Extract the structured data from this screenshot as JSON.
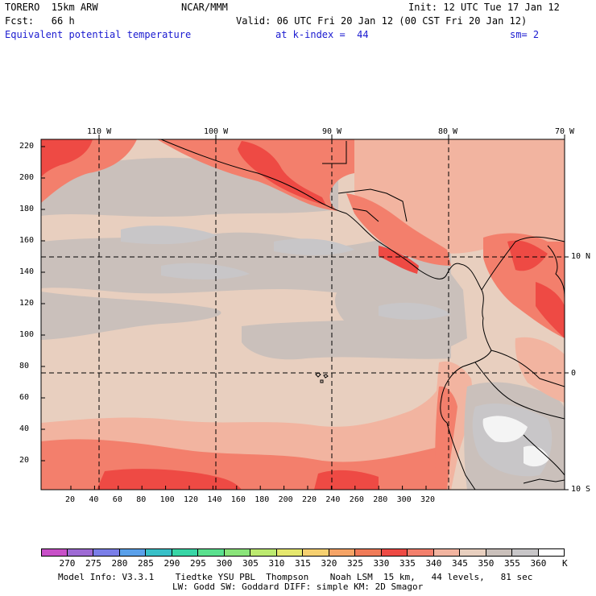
{
  "header": {
    "model": "TORERO  15km ARW",
    "org": "NCAR/MMM",
    "init": "Init: 12 UTC Tue 17 Jan 12",
    "fcst": "Fcst:   66 h",
    "valid": "Valid: 06 UTC Fri 20 Jan 12 (00 CST Fri 20 Jan 12)",
    "field": "Equivalent potential temperature",
    "level": "at k-index =  44",
    "smooth": "sm= 2"
  },
  "map": {
    "lon_labels": [
      "110 W",
      "100 W",
      "90 W",
      "80 W",
      "70 W"
    ],
    "lat_labels": [
      "10 N",
      "0",
      "10 S"
    ],
    "y_ticks": [
      "220",
      "200",
      "180",
      "160",
      "140",
      "120",
      "100",
      "80",
      "60",
      "40",
      "20"
    ],
    "x_ticks": [
      "20",
      "40",
      "60",
      "80",
      "100",
      "120",
      "140",
      "160",
      "180",
      "200",
      "220",
      "240",
      "260",
      "280",
      "300",
      "320"
    ],
    "colors": {
      "c330": "#ee4a44",
      "c335": "#f37f6c",
      "c340": "#f2b4a0",
      "c345": "#e8cfbf",
      "c350": "#cac0bb",
      "c355": "#c8c6c8",
      "c360": "#f4f4f4"
    }
  },
  "colorbar": {
    "labels": [
      "270",
      "275",
      "280",
      "285",
      "290",
      "295",
      "300",
      "305",
      "310",
      "315",
      "320",
      "325",
      "330",
      "335",
      "340",
      "345",
      "350",
      "355",
      "360",
      "K"
    ],
    "colors": [
      "#c850c8",
      "#9e6ad4",
      "#7a7ee8",
      "#5aa0ea",
      "#38c0c8",
      "#38d6a6",
      "#5ae08e",
      "#8ae47a",
      "#bcea70",
      "#e6e86e",
      "#f6d070",
      "#f6a466",
      "#f07b58",
      "#ee4a44",
      "#f37f6c",
      "#f2b4a0",
      "#e8cfbf",
      "#cac0bb",
      "#c8c6c8",
      "#ffffff"
    ]
  },
  "footer": {
    "line1": "Model Info: V3.3.1    Tiedtke YSU PBL  Thompson    Noah LSM  15 km,   44 levels,   81 sec",
    "line2": "LW: Godd SW: Goddard DIFF: simple KM: 2D Smagor"
  }
}
